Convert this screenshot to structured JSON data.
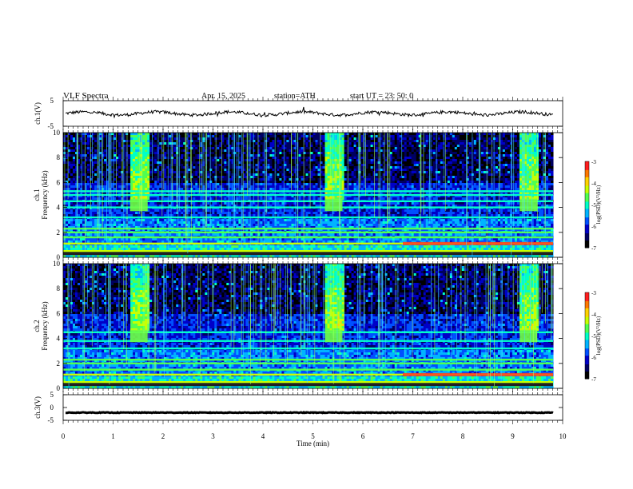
{
  "header": {
    "title": "VLF  Spectra",
    "date": "Apr. 15, 2025",
    "station": "station=ATH",
    "start": "start  UT  =    23: 50: 0"
  },
  "chart_data": [
    {
      "type": "line",
      "panel": "ch1-waveform",
      "ylabel": "ch.1(V)",
      "ylim": [
        -5,
        5
      ],
      "yticks": [
        "5",
        "-5"
      ],
      "x_range": [
        0,
        10
      ],
      "note_values": "waveform near 0 V with small fluctuations"
    },
    {
      "type": "heatmap",
      "panel": "ch1-spectrogram",
      "ylabel_channel": "ch.1",
      "ylabel": "Frequency  (kHz)",
      "ylim": [
        0,
        10
      ],
      "yticks": [
        "0",
        "2",
        "4",
        "6",
        "8",
        "10"
      ],
      "x_range": [
        0,
        9.8
      ],
      "colorbar": {
        "label": "log(PSD)(V²/Hz)",
        "range": [
          -7,
          -3
        ],
        "ticks": [
          "-3",
          "-4",
          "-5",
          "-6",
          "-7"
        ]
      },
      "bands_khz": [
        0.5,
        1.1,
        1.6,
        2.0,
        2.3,
        3.2,
        4.0,
        4.5,
        5.0,
        5.3
      ],
      "bursts_min": [
        1.5,
        5.4,
        9.3
      ],
      "burst_freq_khz": [
        3.7,
        4.7
      ]
    },
    {
      "type": "heatmap",
      "panel": "ch2-spectrogram",
      "ylabel_channel": "ch.2",
      "ylabel": "Frequency  (kHz)",
      "ylim": [
        0,
        10
      ],
      "yticks": [
        "0",
        "2",
        "4",
        "6",
        "8",
        "10"
      ],
      "x_range": [
        0,
        9.8
      ],
      "colorbar": {
        "label": "log(PSD)(V²/Hz)",
        "range": [
          -7,
          -3
        ],
        "ticks": [
          "-3",
          "-4",
          "-5",
          "-6",
          "-7"
        ]
      },
      "bands_khz": [
        0.5,
        1.1,
        1.5,
        2.0,
        2.3,
        3.2,
        3.8,
        4.5
      ],
      "bursts_min": [
        1.5,
        5.4,
        9.3
      ],
      "burst_freq_khz": [
        3.7,
        4.7
      ]
    },
    {
      "type": "line",
      "panel": "ch3-waveform",
      "ylabel": "ch.3(V)",
      "ylim": [
        -5,
        5
      ],
      "yticks": [
        "5",
        "0",
        "-5"
      ],
      "x_range": [
        0,
        9.8
      ],
      "note_values": "nearly constant around -2 V"
    }
  ],
  "xaxis": {
    "label": "Time  (min)",
    "ticks": [
      "0",
      "1",
      "2",
      "3",
      "4",
      "5",
      "6",
      "7",
      "8",
      "9",
      "10"
    ],
    "range": [
      0,
      10
    ]
  },
  "colors": {
    "colormap": [
      "#000000",
      "#000060",
      "#0000c8",
      "#0050ff",
      "#00b4ff",
      "#00ffc8",
      "#50ff50",
      "#c8ff00",
      "#ffd200",
      "#ff7800",
      "#ff1e1e",
      "#ffffff"
    ],
    "trace": "#000000"
  }
}
